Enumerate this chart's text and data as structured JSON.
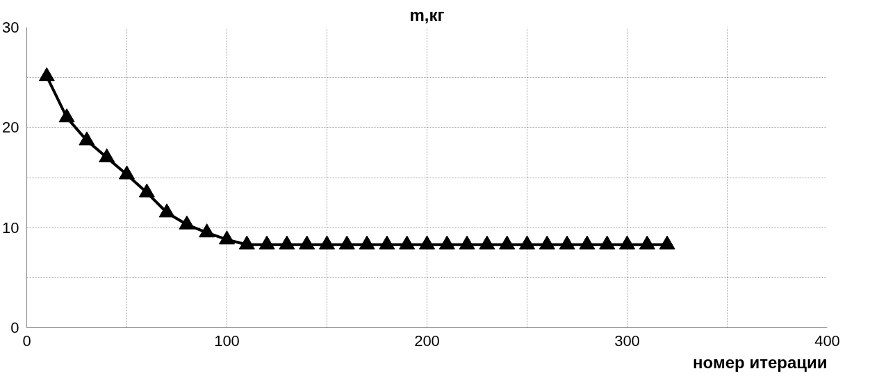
{
  "chart_data": {
    "type": "line",
    "title": "m,кг",
    "xlabel": "номер итерации",
    "x": [
      10,
      20,
      30,
      40,
      50,
      60,
      70,
      80,
      90,
      100,
      110,
      120,
      130,
      140,
      150,
      160,
      170,
      180,
      190,
      200,
      210,
      220,
      230,
      240,
      250,
      260,
      270,
      280,
      290,
      300,
      310,
      320
    ],
    "series": [
      {
        "color": "#000000",
        "values": [
          25.1,
          21.0,
          18.7,
          17.0,
          15.3,
          13.5,
          11.5,
          10.3,
          9.5,
          8.8,
          8.3,
          8.3,
          8.3,
          8.3,
          8.3,
          8.3,
          8.3,
          8.3,
          8.3,
          8.3,
          8.3,
          8.3,
          8.3,
          8.3,
          8.3,
          8.3,
          8.3,
          8.3,
          8.3,
          8.3,
          8.3,
          8.3
        ]
      }
    ],
    "xlim": [
      0,
      400
    ],
    "ylim": [
      0,
      30
    ],
    "xticks": [
      0,
      {
        "value": 50,
        "label": null
      },
      100,
      {
        "value": 150,
        "label": null
      },
      200,
      {
        "value": 250,
        "label": null
      },
      300,
      {
        "value": 350,
        "label": null
      },
      400
    ],
    "yticks": [
      0,
      {
        "value": 5,
        "label": null
      },
      10,
      {
        "value": 15,
        "label": null
      },
      20,
      {
        "value": 25,
        "label": null
      },
      30
    ],
    "grid": true,
    "marker": "triangle",
    "line_style": "solid"
  }
}
